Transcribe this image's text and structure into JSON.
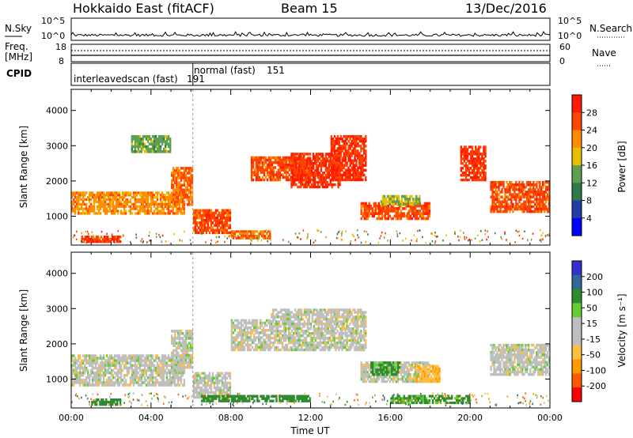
{
  "header": {
    "title": "Hokkaido East (fitACF)",
    "beam": "Beam 15",
    "date": "13/Dec/2016"
  },
  "noise_panel": {
    "label": "N.Sky",
    "right_label": "N.Search",
    "ytick_top": "10^5",
    "ytick_bottom": "10^0"
  },
  "freq_panel": {
    "label_line1": "Freq.",
    "label_line2": "[MHz]",
    "ytick_top": "18",
    "ytick_bottom": "8",
    "right_label": "Nave",
    "right_tick_top": "60",
    "right_tick_bottom": "0"
  },
  "cpid_panel": {
    "label": "CPID",
    "segments": [
      {
        "text": "interleavedscan (fast)",
        "id": "191",
        "start_h": 0.0,
        "end_h": 6.1
      },
      {
        "text": "normal (fast)",
        "id": "151",
        "start_h": 6.1,
        "end_h": 24.0
      }
    ]
  },
  "colors": {
    "power": [
      "#0000ff",
      "#1f3fa6",
      "#2f7a4a",
      "#5fa050",
      "#e6c000",
      "#ff8c00",
      "#ff4500",
      "#ff1a00"
    ],
    "velocity": [
      "#ff0000",
      "#ff5a00",
      "#ff9a00",
      "#ffbf40",
      "#bfbfbf",
      "#bfbfbf",
      "#66cc33",
      "#2e8b2e",
      "#336699",
      "#3333cc"
    ]
  },
  "chart_data": [
    {
      "type": "heatmap",
      "panel": "power",
      "xlabel": "",
      "ylabel": "Slant Range [km]",
      "xlim": [
        0,
        24
      ],
      "ylim": [
        180,
        4600
      ],
      "yticks": [
        "1000",
        "2000",
        "3000",
        "4000"
      ],
      "colorbar": {
        "label": "Power [dB]",
        "ticks": [
          "4",
          "8",
          "12",
          "16",
          "20",
          "24",
          "28"
        ],
        "range": [
          0,
          32
        ]
      },
      "regions": [
        {
          "t0": 0.0,
          "t1": 5.7,
          "r0": 1050,
          "r1": 1700,
          "value": 22
        },
        {
          "t0": 5.0,
          "t1": 6.1,
          "r0": 1300,
          "r1": 2400,
          "value": 24
        },
        {
          "t0": 6.1,
          "t1": 8.0,
          "r0": 500,
          "r1": 1200,
          "value": 26
        },
        {
          "t0": 8.0,
          "t1": 10.0,
          "r0": 350,
          "r1": 600,
          "value": 24
        },
        {
          "t0": 9.0,
          "t1": 12.0,
          "r0": 2000,
          "r1": 2700,
          "value": 26
        },
        {
          "t0": 11.0,
          "t1": 13.5,
          "r0": 1800,
          "r1": 2800,
          "value": 28
        },
        {
          "t0": 13.0,
          "t1": 14.8,
          "r0": 2000,
          "r1": 3300,
          "value": 28
        },
        {
          "t0": 14.5,
          "t1": 18.0,
          "r0": 900,
          "r1": 1400,
          "value": 26
        },
        {
          "t0": 15.5,
          "t1": 17.5,
          "r0": 1300,
          "r1": 1600,
          "value": 16
        },
        {
          "t0": 19.5,
          "t1": 20.8,
          "r0": 2000,
          "r1": 3000,
          "value": 28
        },
        {
          "t0": 21.0,
          "t1": 24.0,
          "r0": 1100,
          "r1": 2000,
          "value": 26
        },
        {
          "t0": 0.5,
          "t1": 2.5,
          "r0": 250,
          "r1": 450,
          "value": 28
        },
        {
          "t0": 3.0,
          "t1": 5.0,
          "r0": 2800,
          "r1": 3300,
          "value": 14
        }
      ]
    },
    {
      "type": "heatmap",
      "panel": "velocity",
      "xlabel": "Time UT",
      "ylabel": "Slant Range [km]",
      "xlim": [
        0,
        24
      ],
      "ylim": [
        180,
        4600
      ],
      "xticks": [
        "00:00",
        "04:00",
        "08:00",
        "12:00",
        "16:00",
        "20:00",
        "00:00"
      ],
      "yticks": [
        "1000",
        "2000",
        "3000",
        "4000"
      ],
      "colorbar": {
        "label": "Velocity [m s⁻¹]",
        "ticks": [
          "200",
          "100",
          "50",
          "15",
          "-15",
          "-50",
          "-100",
          "-200"
        ],
        "range": [
          -250,
          250
        ]
      },
      "regions": [
        {
          "t0": 0.0,
          "t1": 5.7,
          "r0": 800,
          "r1": 1700,
          "value": 0
        },
        {
          "t0": 5.0,
          "t1": 6.1,
          "r0": 1300,
          "r1": 2400,
          "value": 0
        },
        {
          "t0": 6.1,
          "t1": 8.0,
          "r0": 450,
          "r1": 1200,
          "value": 0
        },
        {
          "t0": 8.0,
          "t1": 10.0,
          "r0": 1800,
          "r1": 2700,
          "value": 0
        },
        {
          "t0": 10.0,
          "t1": 14.8,
          "r0": 1800,
          "r1": 3000,
          "value": 0
        },
        {
          "t0": 14.5,
          "t1": 18.0,
          "r0": 900,
          "r1": 1500,
          "value": 0
        },
        {
          "t0": 15.0,
          "t1": 16.5,
          "r0": 1100,
          "r1": 1500,
          "value": 60
        },
        {
          "t0": 17.2,
          "t1": 18.5,
          "r0": 900,
          "r1": 1400,
          "value": -40
        },
        {
          "t0": 21.0,
          "t1": 24.0,
          "r0": 1100,
          "r1": 2000,
          "value": 0
        },
        {
          "t0": 1.0,
          "t1": 2.5,
          "r0": 250,
          "r1": 450,
          "value": 70
        },
        {
          "t0": 6.5,
          "t1": 12.0,
          "r0": 350,
          "r1": 550,
          "value": 70
        },
        {
          "t0": 16.0,
          "t1": 20.0,
          "r0": 300,
          "r1": 550,
          "value": 60
        }
      ]
    }
  ]
}
